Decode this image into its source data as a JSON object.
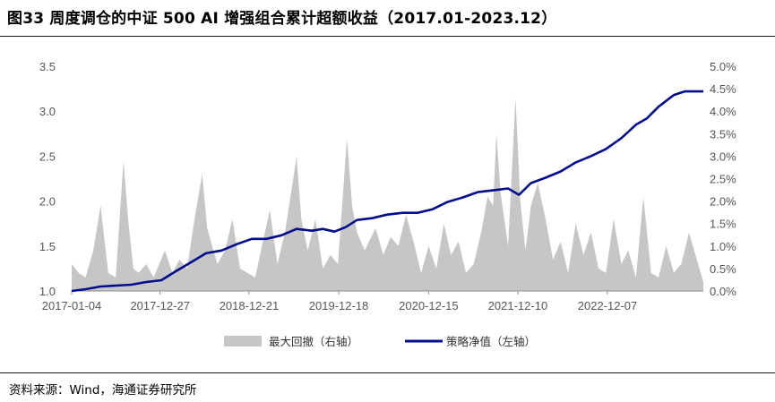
{
  "header": {
    "title": "图33 周度调仓的中证 500 AI 增强组合累计超额收益（2017.01-2023.12）"
  },
  "footer": {
    "source": "资料来源：Wind，海通证券研究所"
  },
  "chart_data": {
    "type": "line+area",
    "title": "图33 周度调仓的中证 500 AI 增强组合累计超额收益（2017.01-2023.12）",
    "x_tick_labels": [
      "2017-01-04",
      "2017-12-27",
      "2018-12-21",
      "2019-12-18",
      "2020-12-15",
      "2021-12-10",
      "2022-12-07"
    ],
    "y_left": {
      "min": 1.0,
      "max": 3.5,
      "ticks": [
        "1.0",
        "1.5",
        "2.0",
        "2.5",
        "3.0",
        "3.5"
      ]
    },
    "y_right": {
      "min": 0.0,
      "max": 5.0,
      "ticks": [
        "0.0%",
        "0.5%",
        "1.0%",
        "1.5%",
        "2.0%",
        "2.5%",
        "3.0%",
        "3.5%",
        "4.0%",
        "4.5%",
        "5.0%"
      ]
    },
    "grid": false,
    "legend_position": "bottom",
    "series": [
      {
        "name": "最大回撤（右轴）",
        "axis": "right",
        "type": "area",
        "color": "#c6c6c6",
        "points": [
          [
            "2017-01-04",
            0.6
          ],
          [
            "2017-02-01",
            0.4
          ],
          [
            "2017-03-01",
            0.3
          ],
          [
            "2017-04-01",
            0.9
          ],
          [
            "2017-05-01",
            1.9
          ],
          [
            "2017-05-15",
            1.2
          ],
          [
            "2017-06-01",
            0.4
          ],
          [
            "2017-07-01",
            0.3
          ],
          [
            "2017-08-01",
            2.9
          ],
          [
            "2017-08-20",
            1.6
          ],
          [
            "2017-09-10",
            0.5
          ],
          [
            "2017-10-01",
            0.4
          ],
          [
            "2017-11-01",
            0.6
          ],
          [
            "2017-12-01",
            0.3
          ],
          [
            "2018-01-15",
            0.9
          ],
          [
            "2018-02-15",
            0.4
          ],
          [
            "2018-03-15",
            0.7
          ],
          [
            "2018-04-15",
            0.5
          ],
          [
            "2018-05-15",
            1.6
          ],
          [
            "2018-06-15",
            2.6
          ],
          [
            "2018-07-05",
            1.4
          ],
          [
            "2018-08-15",
            0.6
          ],
          [
            "2018-09-15",
            0.9
          ],
          [
            "2018-10-15",
            1.6
          ],
          [
            "2018-11-15",
            0.5
          ],
          [
            "2018-12-15",
            0.4
          ],
          [
            "2019-01-15",
            0.3
          ],
          [
            "2019-02-15",
            1.1
          ],
          [
            "2019-03-15",
            1.8
          ],
          [
            "2019-04-15",
            0.6
          ],
          [
            "2019-05-15",
            1.3
          ],
          [
            "2019-06-15",
            2.4
          ],
          [
            "2019-07-01",
            3.0
          ],
          [
            "2019-07-20",
            1.6
          ],
          [
            "2019-08-15",
            0.9
          ],
          [
            "2019-09-15",
            1.6
          ],
          [
            "2019-10-15",
            0.5
          ],
          [
            "2019-11-15",
            0.8
          ],
          [
            "2019-12-15",
            0.6
          ],
          [
            "2020-01-20",
            3.4
          ],
          [
            "2020-02-10",
            1.9
          ],
          [
            "2020-03-01",
            1.3
          ],
          [
            "2020-04-01",
            0.9
          ],
          [
            "2020-05-15",
            1.4
          ],
          [
            "2020-06-15",
            0.8
          ],
          [
            "2020-07-15",
            1.2
          ],
          [
            "2020-08-15",
            1.0
          ],
          [
            "2020-09-15",
            1.7
          ],
          [
            "2020-10-15",
            1.1
          ],
          [
            "2020-11-15",
            0.4
          ],
          [
            "2020-12-15",
            1.0
          ],
          [
            "2021-01-15",
            0.5
          ],
          [
            "2021-02-15",
            1.5
          ],
          [
            "2021-03-15",
            0.8
          ],
          [
            "2021-04-15",
            1.1
          ],
          [
            "2021-05-15",
            0.4
          ],
          [
            "2021-06-15",
            0.6
          ],
          [
            "2021-07-15",
            1.3
          ],
          [
            "2021-08-10",
            2.1
          ],
          [
            "2021-09-01",
            1.9
          ],
          [
            "2021-09-15",
            3.5
          ],
          [
            "2021-10-01",
            2.2
          ],
          [
            "2021-11-01",
            1.0
          ],
          [
            "2021-12-01",
            4.3
          ],
          [
            "2021-12-20",
            2.0
          ],
          [
            "2022-01-10",
            0.9
          ],
          [
            "2022-02-01",
            1.9
          ],
          [
            "2022-03-01",
            2.4
          ],
          [
            "2022-04-01",
            1.6
          ],
          [
            "2022-05-01",
            0.7
          ],
          [
            "2022-06-01",
            1.1
          ],
          [
            "2022-07-01",
            0.4
          ],
          [
            "2022-08-01",
            1.5
          ],
          [
            "2022-09-01",
            0.8
          ],
          [
            "2022-10-01",
            1.3
          ],
          [
            "2022-11-01",
            0.5
          ],
          [
            "2022-12-01",
            0.4
          ],
          [
            "2023-01-01",
            1.6
          ],
          [
            "2023-02-01",
            0.6
          ],
          [
            "2023-03-01",
            0.9
          ],
          [
            "2023-04-01",
            0.3
          ],
          [
            "2023-05-01",
            2.1
          ],
          [
            "2023-06-01",
            0.4
          ],
          [
            "2023-07-01",
            0.3
          ],
          [
            "2023-08-01",
            1.0
          ],
          [
            "2023-09-01",
            0.4
          ],
          [
            "2023-10-01",
            0.6
          ],
          [
            "2023-11-01",
            1.3
          ],
          [
            "2023-12-29",
            0.2
          ]
        ]
      },
      {
        "name": "策略净值（左轴）",
        "axis": "left",
        "type": "line",
        "color": "#000d8f",
        "points": [
          [
            "2017-01-04",
            1.0
          ],
          [
            "2017-03-01",
            1.02
          ],
          [
            "2017-05-01",
            1.05
          ],
          [
            "2017-07-01",
            1.06
          ],
          [
            "2017-09-01",
            1.07
          ],
          [
            "2017-11-01",
            1.1
          ],
          [
            "2018-01-01",
            1.12
          ],
          [
            "2018-03-01",
            1.22
          ],
          [
            "2018-05-01",
            1.32
          ],
          [
            "2018-07-01",
            1.42
          ],
          [
            "2018-09-01",
            1.45
          ],
          [
            "2018-11-01",
            1.52
          ],
          [
            "2019-01-01",
            1.58
          ],
          [
            "2019-03-01",
            1.58
          ],
          [
            "2019-05-01",
            1.62
          ],
          [
            "2019-07-01",
            1.69
          ],
          [
            "2019-09-01",
            1.67
          ],
          [
            "2019-10-15",
            1.69
          ],
          [
            "2019-12-01",
            1.66
          ],
          [
            "2020-01-15",
            1.71
          ],
          [
            "2020-03-01",
            1.79
          ],
          [
            "2020-05-01",
            1.81
          ],
          [
            "2020-07-01",
            1.85
          ],
          [
            "2020-09-01",
            1.87
          ],
          [
            "2020-11-01",
            1.87
          ],
          [
            "2021-01-01",
            1.91
          ],
          [
            "2021-03-01",
            1.99
          ],
          [
            "2021-05-01",
            2.04
          ],
          [
            "2021-07-01",
            2.1
          ],
          [
            "2021-09-01",
            2.12
          ],
          [
            "2021-11-01",
            2.14
          ],
          [
            "2021-12-15",
            2.07
          ],
          [
            "2022-02-01",
            2.2
          ],
          [
            "2022-04-01",
            2.26
          ],
          [
            "2022-06-01",
            2.33
          ],
          [
            "2022-08-01",
            2.43
          ],
          [
            "2022-10-01",
            2.5
          ],
          [
            "2022-12-01",
            2.58
          ],
          [
            "2023-02-01",
            2.7
          ],
          [
            "2023-04-01",
            2.85
          ],
          [
            "2023-05-15",
            2.92
          ],
          [
            "2023-07-01",
            3.05
          ],
          [
            "2023-09-01",
            3.18
          ],
          [
            "2023-10-15",
            3.22
          ],
          [
            "2023-12-29",
            3.22
          ]
        ]
      }
    ]
  }
}
